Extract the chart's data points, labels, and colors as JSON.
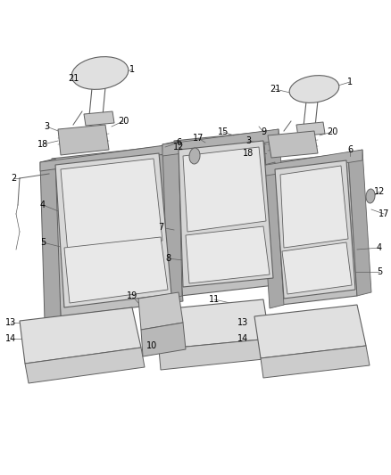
{
  "bg_color": "#ffffff",
  "line_color": "#606060",
  "label_color": "#000000",
  "fig_width": 4.38,
  "fig_height": 5.33,
  "dpi": 100,
  "label_fontsize": 7.0
}
